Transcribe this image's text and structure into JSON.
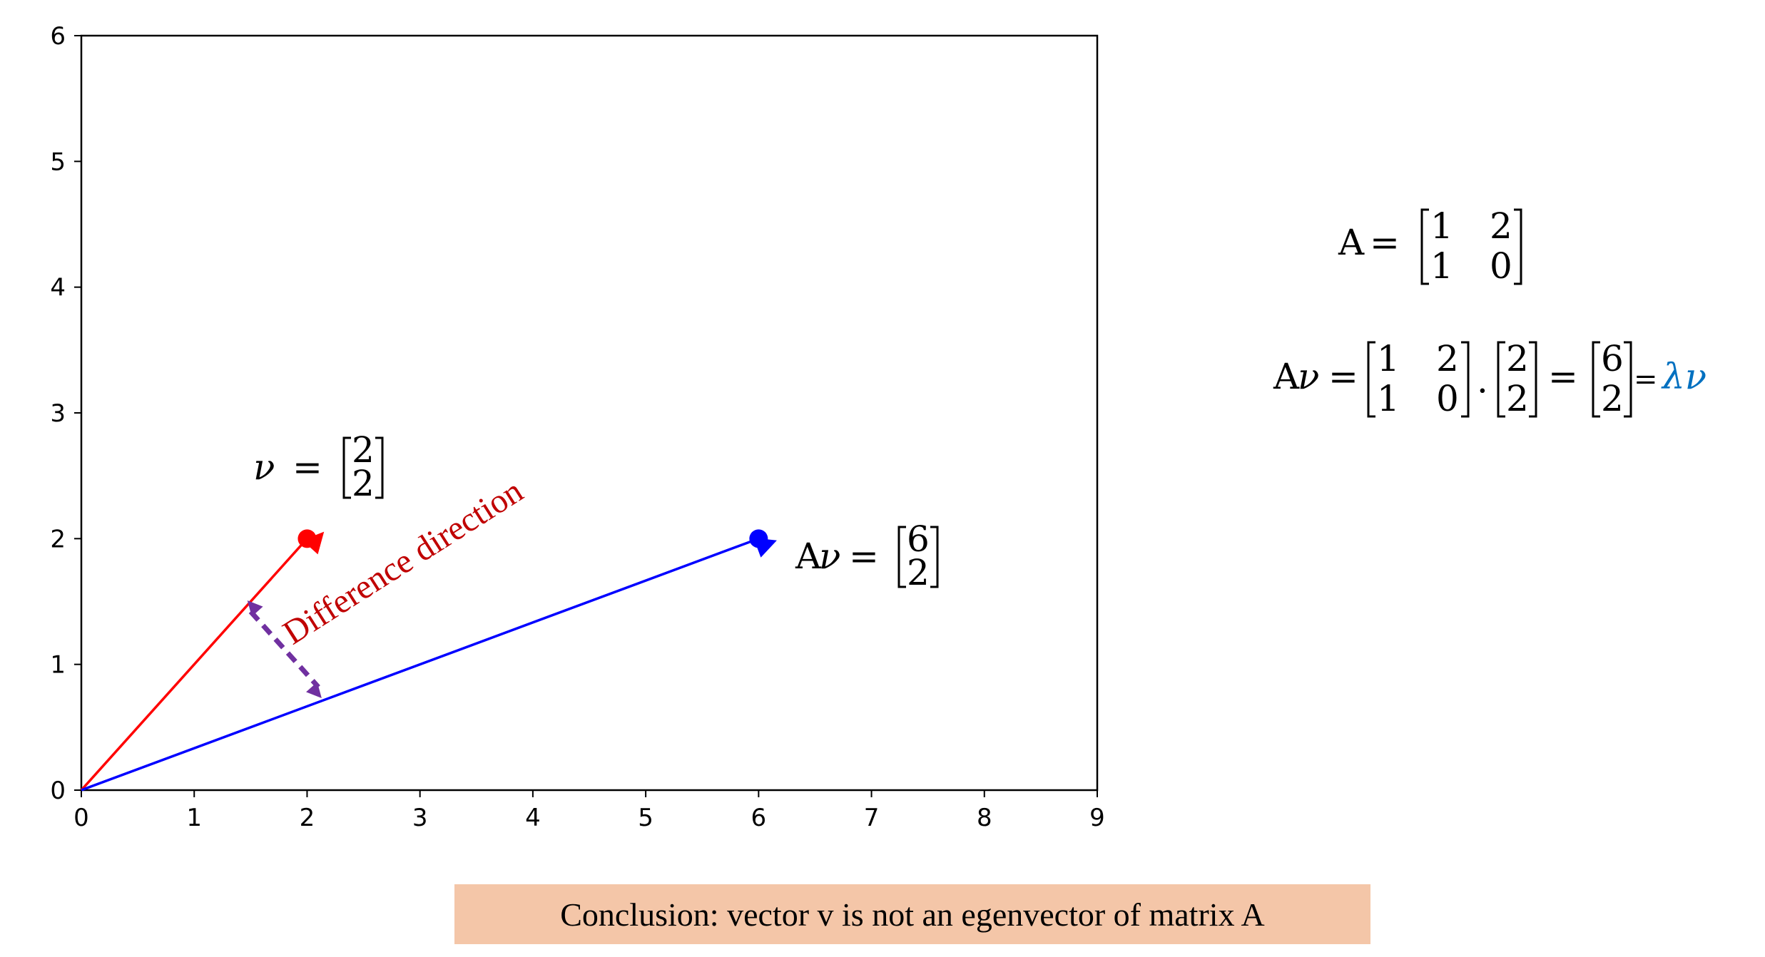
{
  "chart_data": {
    "type": "scatter",
    "xlim": [
      0,
      9
    ],
    "ylim": [
      0,
      6
    ],
    "x_ticks": [
      "0",
      "1",
      "2",
      "3",
      "4",
      "5",
      "6",
      "7",
      "8",
      "9"
    ],
    "y_ticks": [
      "0",
      "1",
      "2",
      "3",
      "4",
      "5",
      "6"
    ],
    "grid": false,
    "vectors": [
      {
        "name": "v",
        "from": [
          0,
          0
        ],
        "to": [
          2,
          2
        ],
        "color": "#ff0000"
      },
      {
        "name": "Av",
        "from": [
          0,
          0
        ],
        "to": [
          6,
          2
        ],
        "color": "#0000ff"
      }
    ],
    "points": [
      {
        "x": 2,
        "y": 2,
        "color": "#ff0000"
      },
      {
        "x": 6,
        "y": 2,
        "color": "#0000ff"
      }
    ],
    "difference_arrow": {
      "from": [
        1.5,
        1.42
      ],
      "to": [
        2.1,
        0.82
      ],
      "color": "#7030a0"
    },
    "annotations": {
      "difference_label": "Difference direction",
      "difference_color": "#c00000"
    }
  },
  "vector_v_label": {
    "lhs": "ν",
    "eq": "=",
    "vec": [
      "2",
      "2"
    ]
  },
  "vector_av_label": {
    "lhs_a": "A",
    "lhs_v": "ν",
    "eq": "=",
    "vec": [
      "6",
      "2"
    ]
  },
  "formulas": {
    "matrix_a": {
      "lhs": "A",
      "eq": "=",
      "rows": [
        [
          "1",
          "2"
        ],
        [
          "1",
          "0"
        ]
      ]
    },
    "product": {
      "lhs_a": "A",
      "lhs_v": "ν",
      "eq": "=",
      "matrix": [
        [
          "1",
          "2"
        ],
        [
          "1",
          "0"
        ]
      ],
      "dot": "·",
      "vec_v": [
        "2",
        "2"
      ],
      "eq2": "=",
      "vec_result": [
        "6",
        "2"
      ],
      "eq3": "=",
      "lambda_v": "λν",
      "lambda_color": "#0070c0"
    }
  },
  "conclusion": "Conclusion: vector v is not an egenvector of matrix A"
}
